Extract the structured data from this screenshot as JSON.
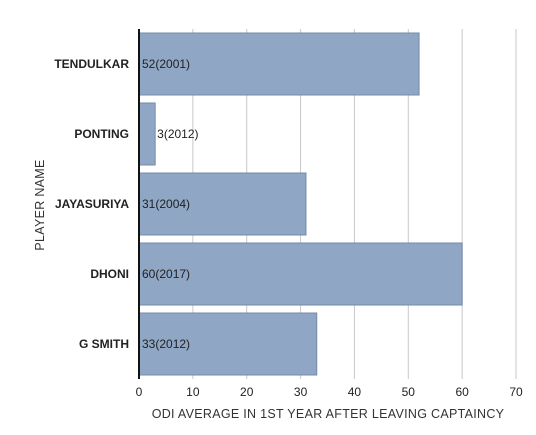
{
  "chart_data": {
    "type": "bar",
    "orientation": "horizontal",
    "categories": [
      "TENDULKAR",
      "PONTING",
      "JAYASURIYA",
      "DHONI",
      "G SMITH"
    ],
    "values": [
      52,
      3,
      31,
      60,
      33
    ],
    "data_labels": [
      "52(2001)",
      "3(2012)",
      "31(2004)",
      "60(2017)",
      "33(2012)"
    ],
    "xlabel": "ODI AVERAGE IN 1ST YEAR AFTER LEAVING CAPTAINCY",
    "ylabel": "PLAYER NAME",
    "xlim": [
      0,
      70
    ],
    "xticks": [
      "0",
      "10",
      "20",
      "30",
      "40",
      "50",
      "60",
      "70"
    ],
    "grid": true,
    "bar_color": "#8fa6c4",
    "bar_border_color": "#7389a8"
  }
}
